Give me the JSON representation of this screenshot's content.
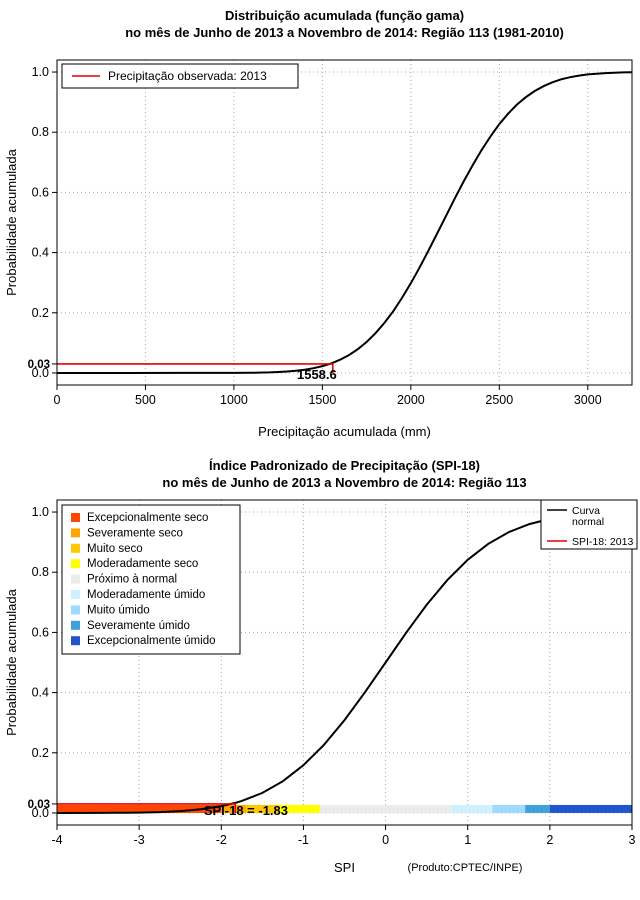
{
  "page": {
    "background": "#FFFFFF"
  },
  "chart_data": [
    {
      "type": "line",
      "id": "gamma-cdf",
      "title_line1": "Distribuição acumulada (função gama)",
      "title_line2": "no mês de Junho de 2013 a Novembro de 2014: Região 113 (1981-2010)",
      "xlabel": "Precipitação acumulada (mm)",
      "ylabel": "Probabilidade acumulada",
      "xlim": [
        0,
        3250
      ],
      "ylim": [
        0,
        1
      ],
      "grid": true,
      "curve_color": "#000000",
      "accent_color": "#E60000",
      "xticks": [
        {
          "v": 0,
          "label": "0"
        },
        {
          "v": 500,
          "label": "500"
        },
        {
          "v": 1000,
          "label": "1000"
        },
        {
          "v": 1500,
          "label": "1500"
        },
        {
          "v": 2000,
          "label": "2000"
        },
        {
          "v": 2500,
          "label": "2500"
        },
        {
          "v": 3000,
          "label": "3000"
        }
      ],
      "yticks": [
        {
          "v": 0,
          "label": "0.0"
        },
        {
          "v": 0.2,
          "label": "0.2"
        },
        {
          "v": 0.4,
          "label": "0.4"
        },
        {
          "v": 0.6,
          "label": "0.6"
        },
        {
          "v": 0.8,
          "label": "0.8"
        },
        {
          "v": 1,
          "label": "1.0"
        }
      ],
      "special_tick": {
        "v": 0.03,
        "label": "0.03"
      },
      "legend": {
        "items": [
          {
            "label": "Precipitação observada: 2013",
            "color": "#E60000"
          }
        ]
      },
      "observed": {
        "x": 1558.6,
        "p": 0.03,
        "label": "1558.6"
      },
      "points": [
        [
          0,
          0
        ],
        [
          400,
          0
        ],
        [
          700,
          0.0001
        ],
        [
          900,
          0.0001
        ],
        [
          1000,
          0.0003
        ],
        [
          1100,
          0.0007
        ],
        [
          1200,
          0.002
        ],
        [
          1250,
          0.0031
        ],
        [
          1300,
          0.0048
        ],
        [
          1350,
          0.0073
        ],
        [
          1400,
          0.011
        ],
        [
          1450,
          0.0158
        ],
        [
          1500,
          0.0228
        ],
        [
          1550,
          0.0319
        ],
        [
          1558.6,
          0.0337
        ],
        [
          1600,
          0.044
        ],
        [
          1650,
          0.0594
        ],
        [
          1700,
          0.079
        ],
        [
          1750,
          0.103
        ],
        [
          1800,
          0.132
        ],
        [
          1850,
          0.166
        ],
        [
          1900,
          0.205
        ],
        [
          1950,
          0.2495
        ],
        [
          2000,
          0.298
        ],
        [
          2050,
          0.351
        ],
        [
          2100,
          0.407
        ],
        [
          2150,
          0.465
        ],
        [
          2200,
          0.523
        ],
        [
          2250,
          0.582
        ],
        [
          2300,
          0.638
        ],
        [
          2350,
          0.691
        ],
        [
          2400,
          0.741
        ],
        [
          2450,
          0.786
        ],
        [
          2500,
          0.827
        ],
        [
          2550,
          0.862
        ],
        [
          2600,
          0.892
        ],
        [
          2650,
          0.9165
        ],
        [
          2700,
          0.937
        ],
        [
          2750,
          0.953
        ],
        [
          2800,
          0.966
        ],
        [
          2850,
          0.9757
        ],
        [
          2900,
          0.983
        ],
        [
          2950,
          0.988
        ],
        [
          3000,
          0.992
        ],
        [
          3100,
          0.9966
        ],
        [
          3200,
          0.9987
        ],
        [
          3250,
          0.9992
        ]
      ]
    },
    {
      "type": "line",
      "id": "spi-cdf",
      "title_line1": "Índice Padronizado de Precipitação (SPI-18)",
      "title_line2": "no mês de Junho de 2013 a Novembro de 2014: Região 113",
      "xlabel": "SPI",
      "ylabel": "Probabilidade acumulada",
      "credit": "(Produto:CPTEC/INPE)",
      "xlim": [
        -4,
        3
      ],
      "ylim": [
        0,
        1
      ],
      "grid": true,
      "curve_color": "#000000",
      "accent_color": "#E60000",
      "xticks": [
        {
          "v": -4,
          "label": "-4"
        },
        {
          "v": -3,
          "label": "-3"
        },
        {
          "v": -2,
          "label": "-2"
        },
        {
          "v": -1,
          "label": "-1"
        },
        {
          "v": 0,
          "label": "0"
        },
        {
          "v": 1,
          "label": "1"
        },
        {
          "v": 2,
          "label": "2"
        },
        {
          "v": 3,
          "label": "3"
        }
      ],
      "yticks": [
        {
          "v": 0,
          "label": "0.0"
        },
        {
          "v": 0.2,
          "label": "0.2"
        },
        {
          "v": 0.4,
          "label": "0.4"
        },
        {
          "v": 0.6,
          "label": "0.6"
        },
        {
          "v": 0.8,
          "label": "0.8"
        },
        {
          "v": 1,
          "label": "1.0"
        }
      ],
      "special_tick": {
        "v": 0.03,
        "label": "0.03"
      },
      "categories": [
        {
          "label": "Excepcionalmente seco",
          "color": "#FF4500",
          "from": -4,
          "to": -2
        },
        {
          "label": "Severamente seco",
          "color": "#FFA500",
          "from": -2,
          "to": -1.7
        },
        {
          "label": "Muito seco",
          "color": "#FFC800",
          "from": -1.7,
          "to": -1.3
        },
        {
          "label": "Moderadamente seco",
          "color": "#FFFF00",
          "from": -1.3,
          "to": -0.8
        },
        {
          "label": "Próximo à normal",
          "color": "#EBEBEB",
          "from": -0.8,
          "to": 0.8
        },
        {
          "label": "Moderadamente úmido",
          "color": "#CFF0FF",
          "from": 0.8,
          "to": 1.3
        },
        {
          "label": "Muito úmido",
          "color": "#9FD9FF",
          "from": 1.3,
          "to": 1.7
        },
        {
          "label": "Severamente úmido",
          "color": "#3FA0DC",
          "from": 1.7,
          "to": 2
        },
        {
          "label": "Excepcionalmente úmido",
          "color": "#2255CC",
          "from": 2,
          "to": 3
        }
      ],
      "legend_lines": {
        "items": [
          {
            "label": "Curva normal",
            "lines": [
              "Curva",
              "normal"
            ],
            "color": "#000000"
          },
          {
            "label": "SPI-18: 2013",
            "lines": [
              "SPI-18: 2013"
            ],
            "color": "#E60000"
          }
        ]
      },
      "observed": {
        "x": -1.83,
        "p": 0.03,
        "label": "SPI-18 = -1.83"
      },
      "points": [
        [
          -4,
          0.0
        ],
        [
          -3.5,
          0.0002
        ],
        [
          -3.25,
          0.0006
        ],
        [
          -3,
          0.0013
        ],
        [
          -2.75,
          0.003
        ],
        [
          -2.5,
          0.0062
        ],
        [
          -2.25,
          0.0122
        ],
        [
          -2,
          0.0228
        ],
        [
          -1.83,
          0.0336
        ],
        [
          -1.75,
          0.0401
        ],
        [
          -1.5,
          0.0668
        ],
        [
          -1.25,
          0.1056
        ],
        [
          -1,
          0.1587
        ],
        [
          -0.75,
          0.2266
        ],
        [
          -0.5,
          0.3085
        ],
        [
          -0.25,
          0.4013
        ],
        [
          0,
          0.5
        ],
        [
          0.25,
          0.5987
        ],
        [
          0.5,
          0.6915
        ],
        [
          0.75,
          0.7734
        ],
        [
          1,
          0.8413
        ],
        [
          1.25,
          0.8944
        ],
        [
          1.5,
          0.9332
        ],
        [
          1.75,
          0.9599
        ],
        [
          2,
          0.9772
        ],
        [
          2.25,
          0.9878
        ],
        [
          2.5,
          0.9938
        ],
        [
          2.75,
          0.997
        ],
        [
          3,
          0.9987
        ]
      ]
    }
  ]
}
